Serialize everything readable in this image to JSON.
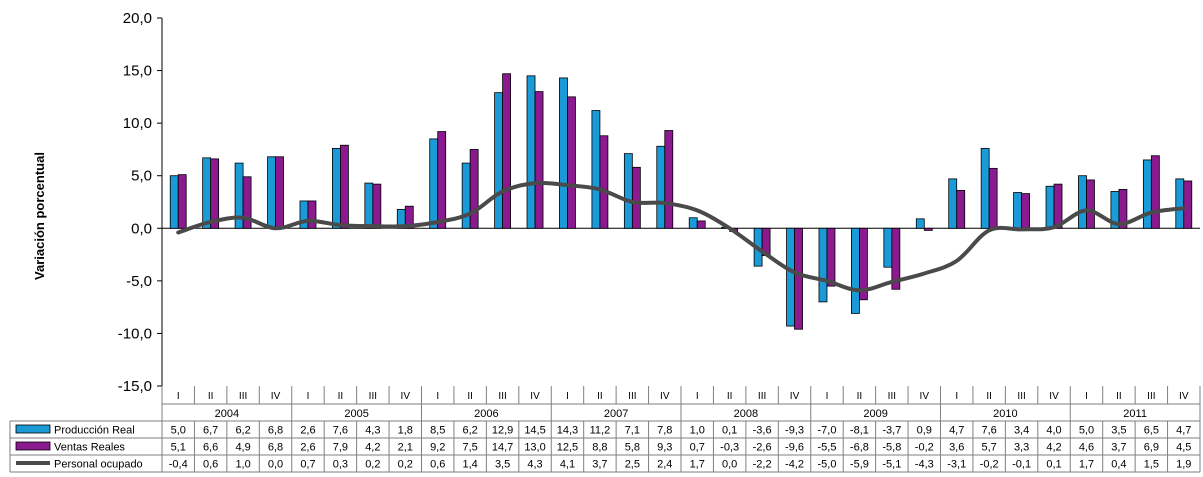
{
  "chart_data": {
    "type": "bar",
    "ylabel": "Variación porcentual",
    "ylim": [
      -15,
      20
    ],
    "yticks": [
      "20,0",
      "15,0",
      "10,0",
      "5,0",
      "0,0",
      "-5,0",
      "-10,0",
      "-15,0"
    ],
    "years": [
      "2004",
      "2005",
      "2006",
      "2007",
      "2008",
      "2009",
      "2010",
      "2011"
    ],
    "quarters": [
      "I",
      "II",
      "III",
      "IV"
    ],
    "categories": [
      "2004-I",
      "2004-II",
      "2004-III",
      "2004-IV",
      "2005-I",
      "2005-II",
      "2005-III",
      "2005-IV",
      "2006-I",
      "2006-II",
      "2006-III",
      "2006-IV",
      "2007-I",
      "2007-II",
      "2007-III",
      "2007-IV",
      "2008-I",
      "2008-II",
      "2008-III",
      "2008-IV",
      "2009-I",
      "2009-II",
      "2009-III",
      "2009-IV",
      "2010-I",
      "2010-II",
      "2010-III",
      "2010-IV",
      "2011-I",
      "2011-II",
      "2011-III",
      "2011-IV"
    ],
    "series": [
      {
        "name": "Producción Real",
        "kind": "bar",
        "color": "#1a9ad6",
        "values": [
          5.0,
          6.7,
          6.2,
          6.8,
          2.6,
          7.6,
          4.3,
          1.8,
          8.5,
          6.2,
          12.9,
          14.5,
          14.3,
          11.2,
          7.1,
          7.8,
          1.0,
          0.1,
          -3.6,
          -9.3,
          -7.0,
          -8.1,
          -3.7,
          0.9,
          4.7,
          7.6,
          3.4,
          4.0,
          5.0,
          3.5,
          6.5,
          4.7
        ],
        "labels": [
          "5,0",
          "6,7",
          "6,2",
          "6,8",
          "2,6",
          "7,6",
          "4,3",
          "1,8",
          "8,5",
          "6,2",
          "12,9",
          "14,5",
          "14,3",
          "11,2",
          "7,1",
          "7,8",
          "1,0",
          "0,1",
          "-3,6",
          "-9,3",
          "-7,0",
          "-8,1",
          "-3,7",
          "0,9",
          "4,7",
          "7,6",
          "3,4",
          "4,0",
          "5,0",
          "3,5",
          "6,5",
          "4,7"
        ]
      },
      {
        "name": "Ventas Reales",
        "kind": "bar",
        "color": "#8b1a8f",
        "values": [
          5.1,
          6.6,
          4.9,
          6.8,
          2.6,
          7.9,
          4.2,
          2.1,
          9.2,
          7.5,
          14.7,
          13.0,
          12.5,
          8.8,
          5.8,
          9.3,
          0.7,
          -0.3,
          -2.6,
          -9.6,
          -5.5,
          -6.8,
          -5.8,
          -0.2,
          3.6,
          5.7,
          3.3,
          4.2,
          4.6,
          3.7,
          6.9,
          4.5
        ],
        "labels": [
          "5,1",
          "6,6",
          "4,9",
          "6,8",
          "2,6",
          "7,9",
          "4,2",
          "2,1",
          "9,2",
          "7,5",
          "14,7",
          "13,0",
          "12,5",
          "8,8",
          "5,8",
          "9,3",
          "0,7",
          "-0,3",
          "-2,6",
          "-9,6",
          "-5,5",
          "-6,8",
          "-5,8",
          "-0,2",
          "3,6",
          "5,7",
          "3,3",
          "4,2",
          "4,6",
          "3,7",
          "6,9",
          "4,5"
        ]
      },
      {
        "name": "Personal ocupado",
        "kind": "line",
        "color": "#4a4a4a",
        "values": [
          -0.4,
          0.6,
          1.0,
          0.0,
          0.7,
          0.3,
          0.2,
          0.2,
          0.6,
          1.4,
          3.5,
          4.3,
          4.1,
          3.7,
          2.5,
          2.4,
          1.7,
          0.0,
          -2.2,
          -4.2,
          -5.0,
          -5.9,
          -5.1,
          -4.3,
          -3.1,
          -0.2,
          -0.1,
          0.1,
          1.7,
          0.4,
          1.5,
          1.9
        ],
        "labels": [
          "-0,4",
          "0,6",
          "1,0",
          "0,0",
          "0,7",
          "0,3",
          "0,2",
          "0,2",
          "0,6",
          "1,4",
          "3,5",
          "4,3",
          "4,1",
          "3,7",
          "2,5",
          "2,4",
          "1,7",
          "0,0",
          "-2,2",
          "-4,2",
          "-5,0",
          "-5,9",
          "-5,1",
          "-4,3",
          "-3,1",
          "-0,2",
          "-0,1",
          "0,1",
          "1,7",
          "0,4",
          "1,5",
          "1,9"
        ]
      }
    ],
    "grid": false,
    "legend": "data table below chart"
  }
}
